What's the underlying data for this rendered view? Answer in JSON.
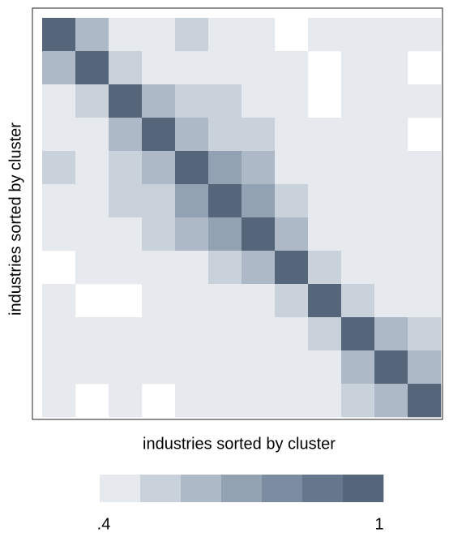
{
  "chart_data": {
    "type": "heatmap",
    "x_label": "industries sorted by cluster",
    "y_label": "industries sorted by cluster",
    "values": [
      [
        1,
        0.62,
        0.48,
        0.45,
        0.5,
        0.47,
        0.45,
        null,
        0.44,
        0.42,
        0.46,
        0.43
      ],
      [
        0.62,
        1,
        0.5,
        0.47,
        0.46,
        0.48,
        0.46,
        0.42,
        null,
        0.44,
        0.45,
        null
      ],
      [
        0.48,
        0.5,
        1,
        0.58,
        0.55,
        0.5,
        0.48,
        0.45,
        null,
        0.46,
        0.47,
        0.43
      ],
      [
        0.45,
        0.47,
        0.58,
        1,
        0.6,
        0.52,
        0.5,
        0.47,
        0.42,
        0.45,
        0.44,
        null
      ],
      [
        0.5,
        0.46,
        0.55,
        0.6,
        1,
        0.68,
        0.63,
        0.48,
        0.43,
        0.47,
        0.45,
        0.44
      ],
      [
        0.47,
        0.48,
        0.5,
        0.52,
        0.68,
        1,
        0.72,
        0.5,
        0.44,
        0.46,
        0.48,
        0.45
      ],
      [
        0.45,
        0.46,
        0.48,
        0.5,
        0.63,
        0.72,
        1,
        0.6,
        0.45,
        0.45,
        0.46,
        0.43
      ],
      [
        null,
        0.42,
        0.45,
        0.47,
        0.48,
        0.5,
        0.6,
        1,
        0.55,
        0.48,
        0.44,
        0.42
      ],
      [
        0.44,
        null,
        null,
        0.42,
        0.43,
        0.44,
        0.45,
        0.55,
        1,
        0.52,
        0.47,
        0.44
      ],
      [
        0.42,
        0.44,
        0.46,
        0.45,
        0.47,
        0.46,
        0.45,
        0.48,
        0.52,
        1,
        0.62,
        0.5
      ],
      [
        0.46,
        0.45,
        0.47,
        0.44,
        0.45,
        0.48,
        0.46,
        0.44,
        0.47,
        0.62,
        1,
        0.58
      ],
      [
        0.43,
        null,
        0.43,
        null,
        0.44,
        0.45,
        0.43,
        0.42,
        0.44,
        0.5,
        0.58,
        1
      ]
    ],
    "colors": [
      "#e6eaee",
      "#c9d1da",
      "#adb9c6",
      "#93a2b3",
      "#7b8ca0",
      "#66778d",
      "#55657a"
    ],
    "zlim": [
      0.4,
      1
    ],
    "zticks": [
      {
        "value": 0.4,
        "label": ".4"
      },
      1
    ]
  }
}
